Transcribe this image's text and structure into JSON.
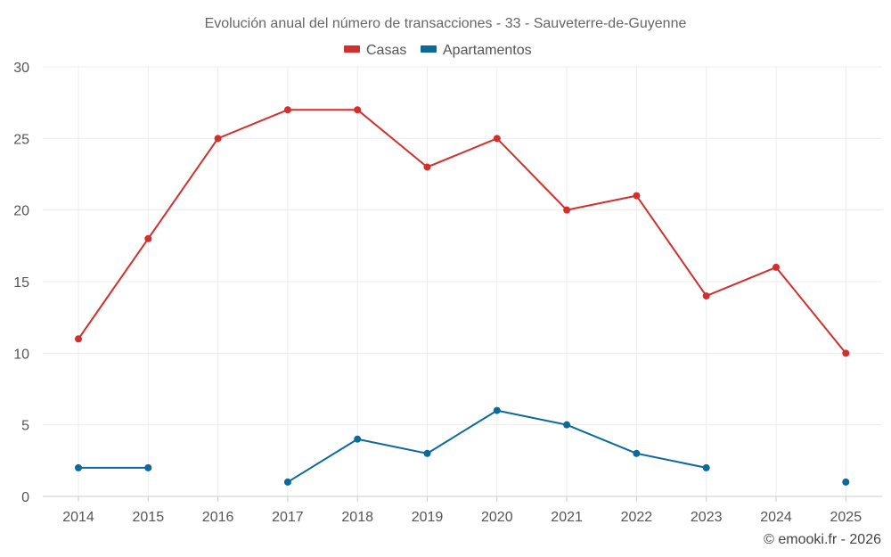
{
  "chart_data": {
    "type": "line",
    "title": "Evolución anual del número de transacciones - 33 - Sauveterre-de-Guyenne",
    "categories": [
      "2014",
      "2015",
      "2016",
      "2017",
      "2018",
      "2019",
      "2020",
      "2021",
      "2022",
      "2023",
      "2024",
      "2025"
    ],
    "ylim": [
      0,
      30
    ],
    "yticks": [
      0,
      5,
      10,
      15,
      20,
      25,
      30
    ],
    "grid": true,
    "legend_position": "top-center",
    "series": [
      {
        "name": "Casas",
        "color": "#d32f2f",
        "values": [
          11,
          18,
          25,
          27,
          27,
          23,
          25,
          20,
          21,
          14,
          16,
          10
        ]
      },
      {
        "name": "Apartamentos",
        "color": "#0b6a9a",
        "values": [
          2,
          2,
          null,
          1,
          4,
          3,
          6,
          5,
          3,
          2,
          null,
          1
        ]
      }
    ],
    "credit": "© emooki.fr - 2026"
  }
}
